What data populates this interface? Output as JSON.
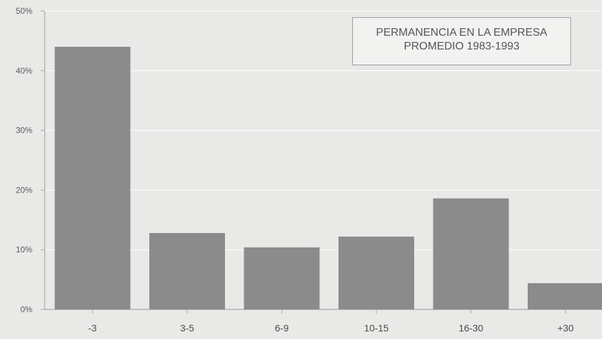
{
  "chart_data": {
    "type": "bar",
    "title": [
      "PERMANENCIA EN LA EMPRESA",
      "PROMEDIO 1983-1993"
    ],
    "categories": [
      "-3",
      "3-5",
      "6-9",
      "10-15",
      "16-30",
      "+30"
    ],
    "values": [
      44,
      12.8,
      10.4,
      12.2,
      18.6,
      4.4
    ],
    "ylim": [
      0,
      50
    ],
    "yticks": [
      "0%",
      "10%",
      "20%",
      "30%",
      "40%",
      "50%"
    ],
    "grid": true,
    "colors": {
      "bar": "#8b8b8b",
      "grid": "#ffffff",
      "axis": "#a8a8a8"
    }
  }
}
